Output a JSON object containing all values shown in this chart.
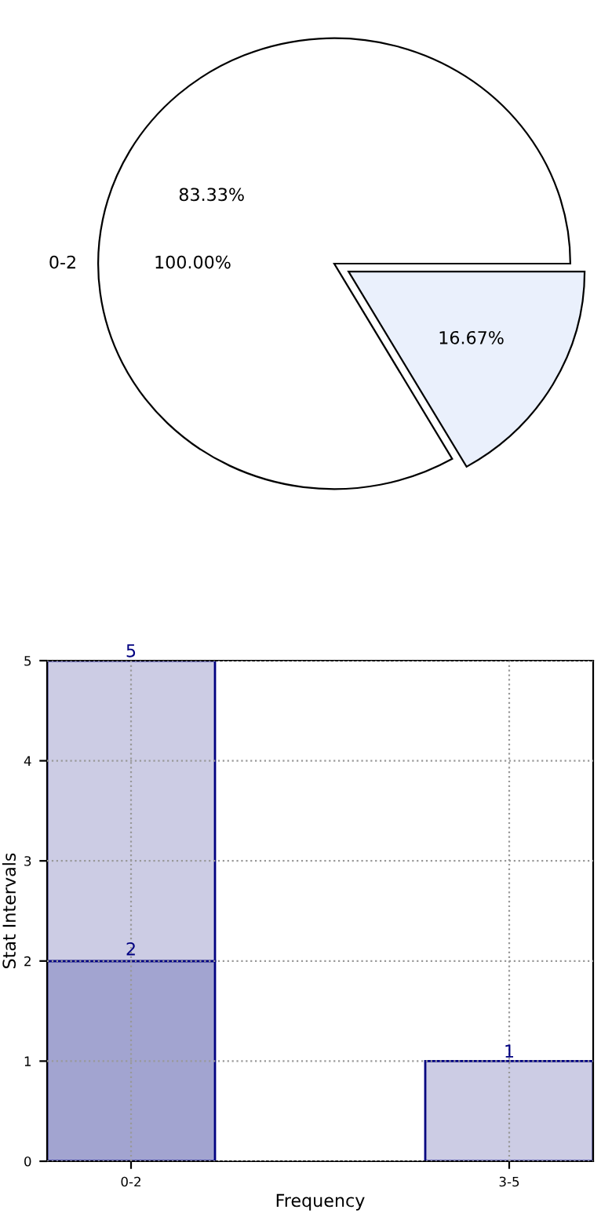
{
  "chart_data": [
    {
      "type": "pie",
      "categories": [
        null,
        null
      ],
      "values": [
        16.67,
        83.33
      ],
      "colors": [
        "#eaf0fc",
        "#ffffff"
      ],
      "value_labels": [
        "16.67%",
        "83.33%"
      ],
      "annotations": [
        "0-2",
        "100.00%"
      ]
    },
    {
      "type": "bar",
      "categories": [
        "0-2",
        "3-5"
      ],
      "xlabel": "Frequency",
      "ylabel": "Stat Intervals",
      "ylim": [
        0,
        5
      ],
      "yticks": [
        0,
        1,
        2,
        3,
        4,
        5
      ],
      "grid": true,
      "stacked": true,
      "totals": [
        "5",
        "1"
      ],
      "series": [
        {
          "color": "#a2a4d0",
          "values": [
            2,
            null
          ],
          "value_labels": [
            "2",
            null
          ]
        },
        {
          "color": "#cccce4",
          "values": [
            3,
            1
          ]
        }
      ]
    }
  ]
}
